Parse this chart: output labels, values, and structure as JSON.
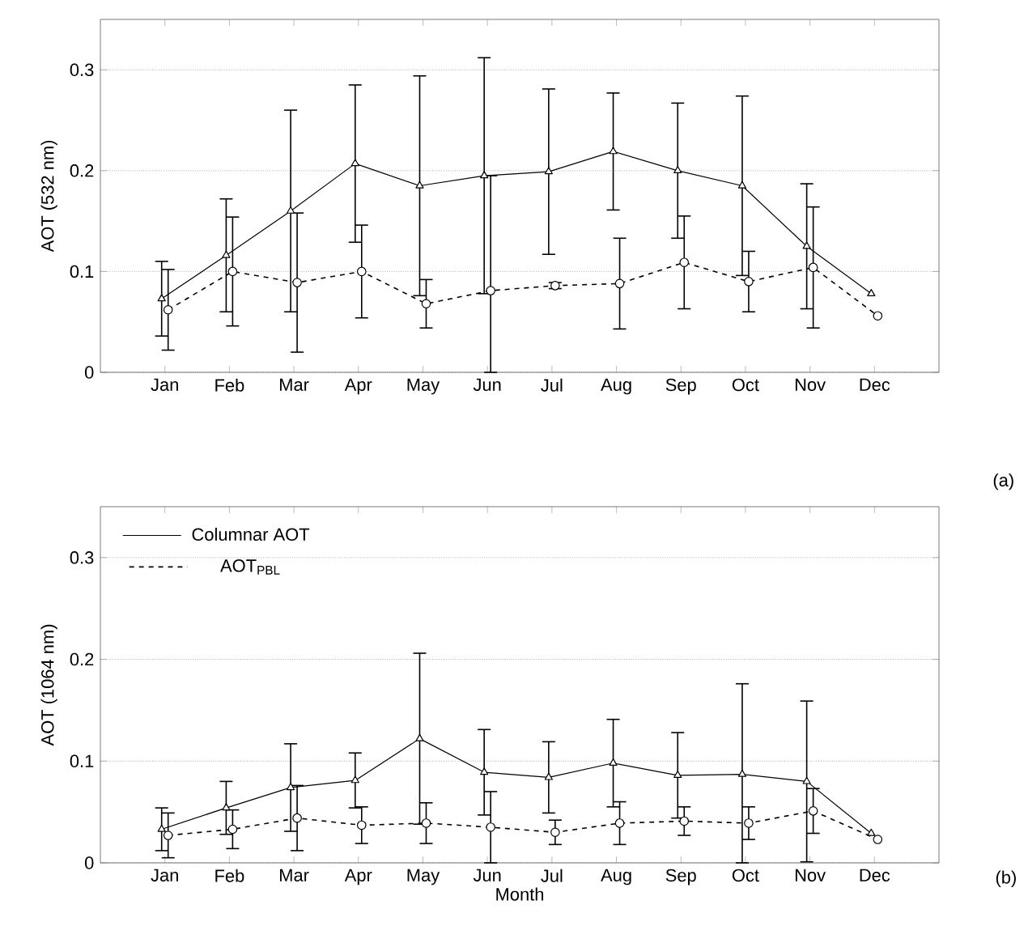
{
  "chart_data": [
    {
      "type": "line",
      "ylabel": "AOT (532 nm)",
      "categories": [
        "Jan",
        "Feb",
        "Mar",
        "Apr",
        "May",
        "Jun",
        "Jul",
        "Aug",
        "Sep",
        "Oct",
        "Nov",
        "Dec"
      ],
      "ylim": [
        0,
        0.35
      ],
      "yticks": [
        0,
        0.1,
        0.2,
        0.3
      ],
      "grid": "y",
      "legend": false,
      "annotations": [
        "(a)"
      ],
      "series": [
        {
          "color": "#000000",
          "marker": "triangle",
          "line_style": "solid",
          "values": [
            0.073,
            0.116,
            0.16,
            0.207,
            0.185,
            0.195,
            0.199,
            0.219,
            0.2,
            0.185,
            0.125,
            0.078
          ],
          "errors": [
            0.037,
            0.056,
            0.1,
            0.078,
            0.109,
            0.117,
            0.082,
            0.058,
            0.067,
            0.089,
            0.062,
            null
          ]
        },
        {
          "color": "#000000",
          "marker": "circle",
          "line_style": "dashed",
          "values": [
            0.062,
            0.1,
            0.089,
            0.1,
            0.068,
            0.081,
            0.086,
            0.088,
            0.109,
            0.09,
            0.104,
            0.056
          ],
          "errors": [
            0.04,
            0.054,
            0.069,
            0.046,
            0.024,
            [
              0,
              0.195
            ],
            0.003,
            0.045,
            0.046,
            0.03,
            0.06,
            null
          ]
        }
      ]
    },
    {
      "type": "line",
      "ylabel": "AOT (1064 nm)",
      "xlabel": "Month",
      "categories": [
        "Jan",
        "Feb",
        "Mar",
        "Apr",
        "May",
        "Jun",
        "Jul",
        "Aug",
        "Sep",
        "Oct",
        "Nov",
        "Dec"
      ],
      "ylim": [
        0,
        0.35
      ],
      "yticks": [
        0,
        0.1,
        0.2,
        0.3
      ],
      "grid": "y",
      "legend": "top left",
      "annotations": [
        "(b)"
      ],
      "series": [
        {
          "name": "Columnar AOT",
          "color": "#000000",
          "marker": "triangle",
          "line_style": "solid",
          "values": [
            0.033,
            0.054,
            0.074,
            0.081,
            0.122,
            0.089,
            0.084,
            0.098,
            0.086,
            0.087,
            0.08,
            0.029
          ],
          "errors": [
            0.021,
            0.026,
            0.043,
            0.027,
            0.084,
            0.042,
            0.035,
            0.043,
            0.042,
            [
              0,
              0.176
            ],
            0.079,
            null
          ]
        },
        {
          "name": "AOT$_{PBL}$",
          "color": "#000000",
          "marker": "circle",
          "line_style": "dashed",
          "values": [
            0.027,
            0.033,
            0.044,
            0.037,
            0.039,
            0.035,
            0.03,
            0.039,
            0.041,
            0.039,
            0.051,
            0.023
          ],
          "errors": [
            0.022,
            0.019,
            0.032,
            0.018,
            0.02,
            0.035,
            0.012,
            0.021,
            0.014,
            0.016,
            0.022,
            null
          ]
        }
      ]
    }
  ]
}
